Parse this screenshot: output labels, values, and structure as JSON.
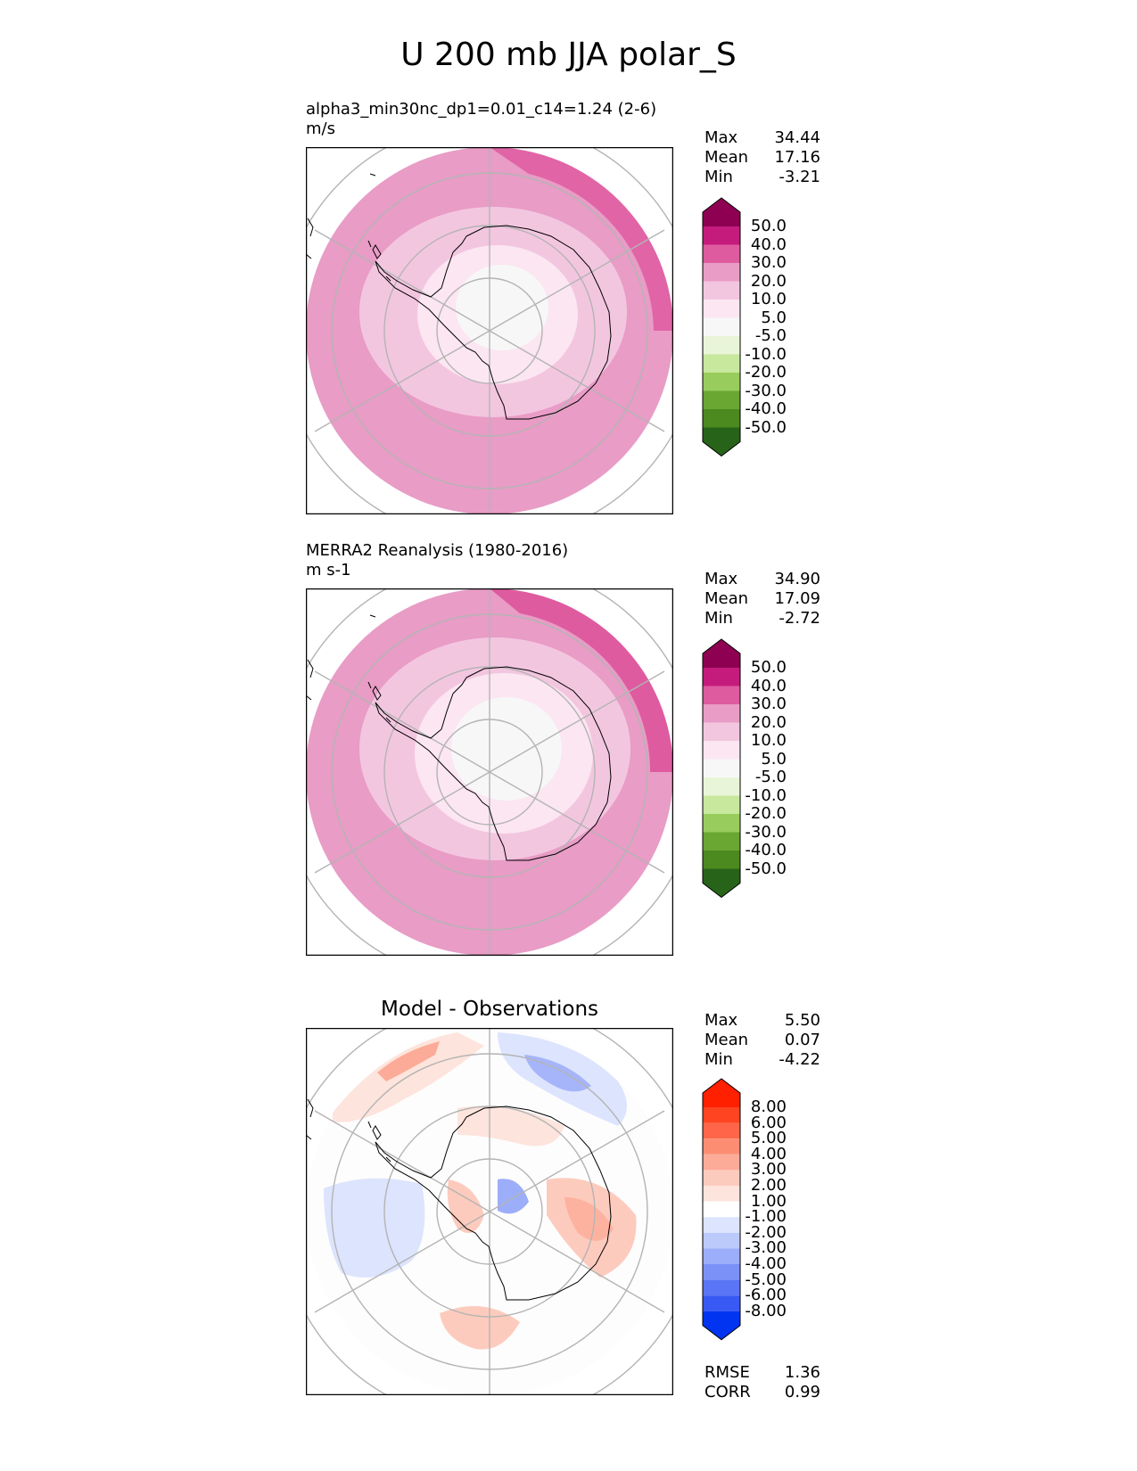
{
  "title": "U 200 mb JJA polar_S",
  "panels": [
    {
      "subtitle_line1": "alpha3_min30nc_dp1=0.01_c14=1.24 (2-6)",
      "subtitle_line2": "m/s",
      "stats": [
        {
          "label": "Max",
          "value": "34.44"
        },
        {
          "label": "Mean",
          "value": "17.16"
        },
        {
          "label": "Min",
          "value": "-3.21"
        }
      ],
      "colorbar": {
        "ticks": [
          "50.0",
          "40.0",
          "30.0",
          "20.0",
          "10.0",
          "5.0",
          "-5.0",
          "-10.0",
          "-20.0",
          "-30.0",
          "-40.0",
          "-50.0"
        ],
        "colors": [
          "#8e0152",
          "#c51b7d",
          "#de5ba0",
          "#e89cc6",
          "#f3c6e0",
          "#fbe6f1",
          "#f7f7f7",
          "#e9f5d8",
          "#c7e89d",
          "#98cc5d",
          "#6aa632",
          "#4c8a1f",
          "#276419"
        ]
      }
    },
    {
      "subtitle_line1": "MERRA2 Reanalysis (1980-2016)",
      "subtitle_line2": "m s-1",
      "stats": [
        {
          "label": "Max",
          "value": "34.90"
        },
        {
          "label": "Mean",
          "value": "17.09"
        },
        {
          "label": "Min",
          "value": "-2.72"
        }
      ],
      "colorbar": {
        "ticks": [
          "50.0",
          "40.0",
          "30.0",
          "20.0",
          "10.0",
          "5.0",
          "-5.0",
          "-10.0",
          "-20.0",
          "-30.0",
          "-40.0",
          "-50.0"
        ],
        "colors": [
          "#8e0152",
          "#c51b7d",
          "#de5ba0",
          "#e89cc6",
          "#f3c6e0",
          "#fbe6f1",
          "#f7f7f7",
          "#e9f5d8",
          "#c7e89d",
          "#98cc5d",
          "#6aa632",
          "#4c8a1f",
          "#276419"
        ]
      }
    },
    {
      "title": "Model - Observations",
      "stats": [
        {
          "label": "Max",
          "value": "5.50"
        },
        {
          "label": "Mean",
          "value": "0.07"
        },
        {
          "label": "Min",
          "value": "-4.22"
        }
      ],
      "colorbar": {
        "ticks": [
          "8.00",
          "6.00",
          "5.00",
          "4.00",
          "3.00",
          "2.00",
          "1.00",
          "-1.00",
          "-2.00",
          "-3.00",
          "-4.00",
          "-5.00",
          "-6.00",
          "-8.00"
        ],
        "colors": [
          "#ff2000",
          "#ff4422",
          "#ff6649",
          "#fc8d73",
          "#fcab98",
          "#fdcbbd",
          "#fde4dc",
          "#ffffff",
          "#dde4fd",
          "#bcc9fb",
          "#9cadf9",
          "#7b91f7",
          "#5a75f5",
          "#3859f3",
          "#0034f0"
        ]
      },
      "metrics": [
        {
          "label": "RMSE",
          "value": "1.36"
        },
        {
          "label": "CORR",
          "value": "0.99"
        }
      ]
    }
  ]
}
